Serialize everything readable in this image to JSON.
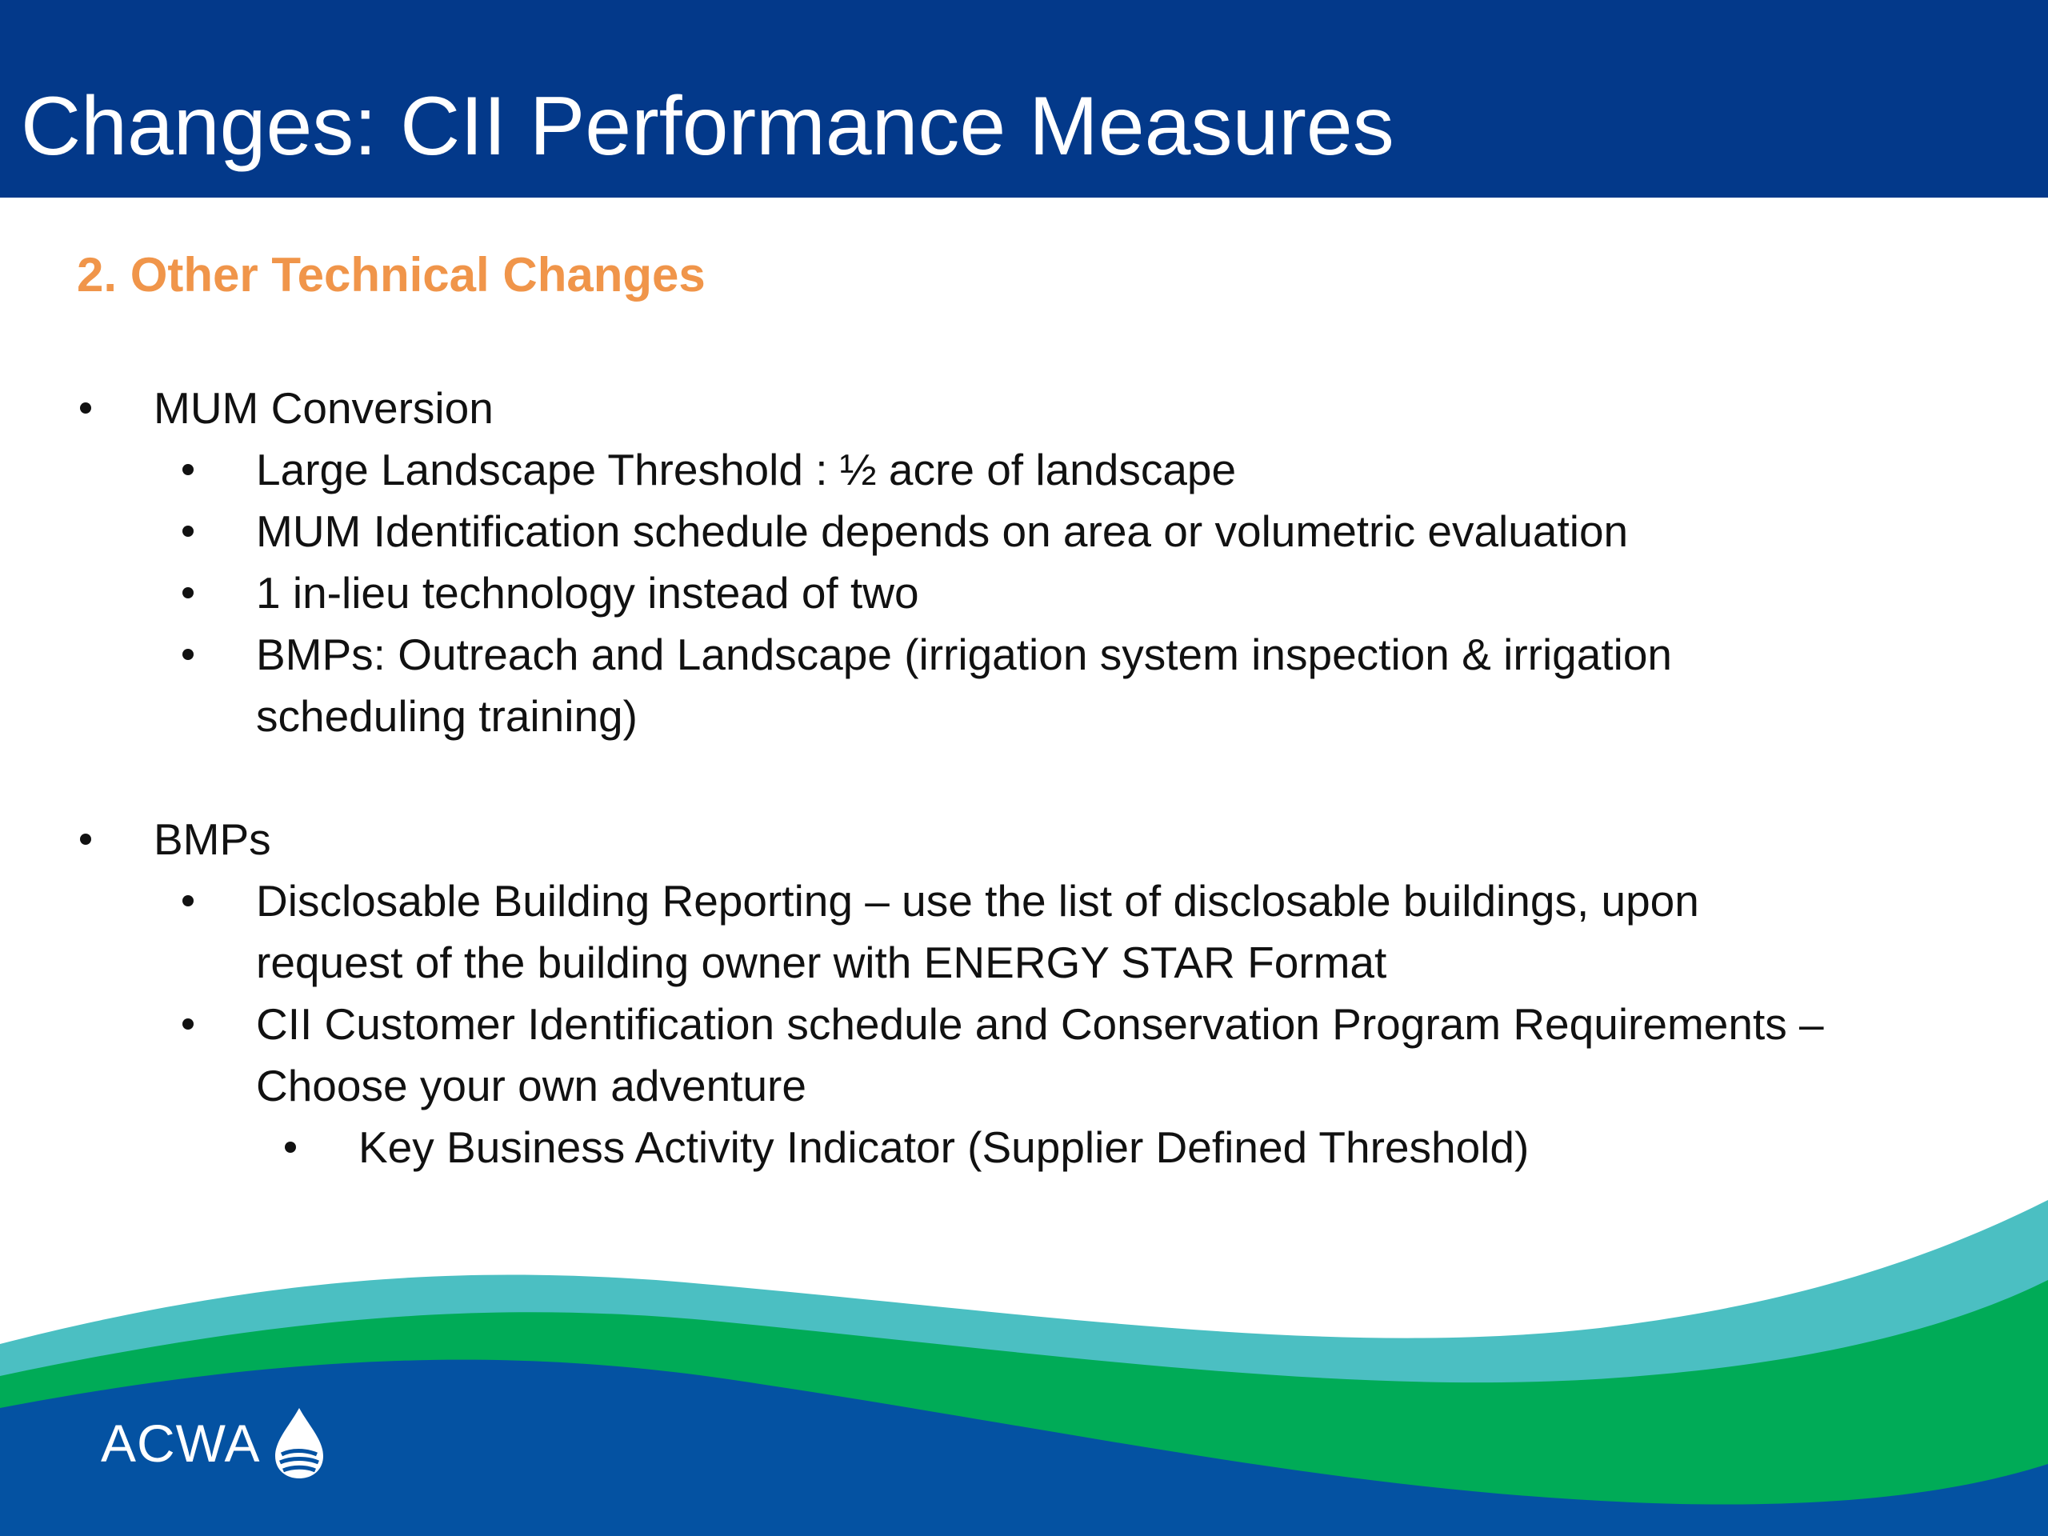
{
  "slide": {
    "title": "Changes: CII Performance Measures",
    "subtitle": "2. Other Technical Changes"
  },
  "content": {
    "mum": {
      "label": "MUM Conversion",
      "items": [
        "Large Landscape Threshold : ½ acre of landscape",
        "MUM Identification schedule depends on area or volumetric evaluation",
        "1 in-lieu technology instead of two",
        "BMPs: Outreach and Landscape (irrigation system inspection & irrigation",
        "scheduling training)"
      ]
    },
    "bmps": {
      "label": "BMPs",
      "items": [
        "Disclosable Building Reporting – use the list of disclosable buildings, upon",
        "request of the building owner with ENERGY STAR Format",
        "CII Customer Identification schedule and Conservation Program Requirements –",
        "Choose your own adventure"
      ],
      "sub_items": [
        "Key Business Activity Indicator (Supplier Defined Threshold)"
      ]
    }
  },
  "footer": {
    "logo_text": "ACWA"
  },
  "colors": {
    "header": "#03398a",
    "subtitle": "#f0954a",
    "wave_teal": "#4bbfc2",
    "wave_green": "#00ab57",
    "wave_blue": "#0452a2"
  }
}
